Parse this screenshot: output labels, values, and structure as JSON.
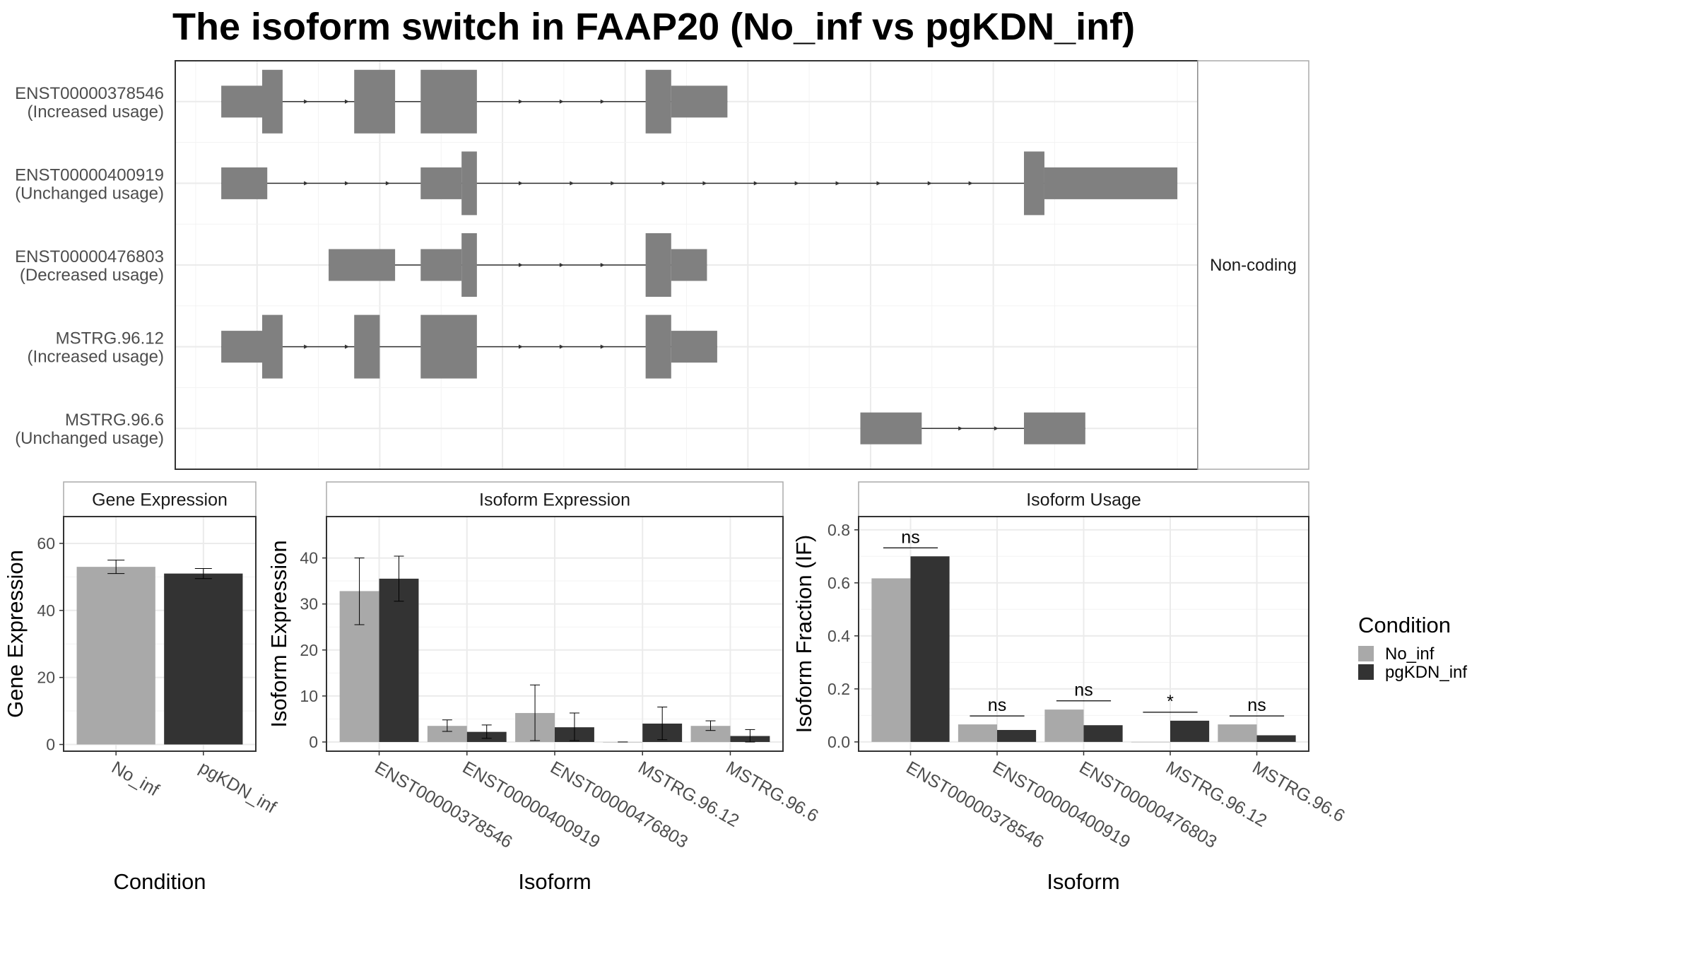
{
  "title": "The isoform switch in FAAP20 (No_inf vs pgKDN_inf)",
  "colors": {
    "No_inf": "#a9a9a9",
    "pgKDN_inf": "#333333",
    "exon": "#808080",
    "grid": "#ebebeb",
    "panel_border": "#333333",
    "strip_border": "#aaaaaa"
  },
  "legend": {
    "title": "Condition",
    "items": [
      "No_inf",
      "pgKDN_inf"
    ]
  },
  "chart_data": [
    {
      "type": "gene_structure",
      "strip_label": "Non-coding",
      "xlim": [
        0,
        100
      ],
      "transcripts": [
        {
          "name": "ENST00000378546",
          "usage": "(Increased usage)",
          "exons": [
            [
              4.5,
              8.5,
              "t"
            ],
            [
              8.5,
              10.5,
              "c"
            ],
            [
              17.5,
              21.5,
              "c"
            ],
            [
              24,
              29.5,
              "c"
            ],
            [
              46,
              48.5,
              "c"
            ],
            [
              48.5,
              54,
              "t"
            ]
          ],
          "arrows": [
            13,
            17,
            34,
            38,
            42
          ]
        },
        {
          "name": "ENST00000400919",
          "usage": "(Unchanged usage)",
          "exons": [
            [
              4.5,
              9,
              "t"
            ],
            [
              24,
              28,
              "t"
            ],
            [
              28,
              29.5,
              "c"
            ],
            [
              83,
              85,
              "c"
            ],
            [
              85,
              98,
              "t"
            ]
          ],
          "arrows": [
            13,
            17,
            21,
            34,
            39,
            43,
            48,
            52,
            57,
            61,
            65,
            69,
            74,
            78
          ]
        },
        {
          "name": "ENST00000476803",
          "usage": "(Decreased usage)",
          "exons": [
            [
              15,
              21.5,
              "t"
            ],
            [
              24,
              28,
              "t"
            ],
            [
              28,
              29.5,
              "c"
            ],
            [
              46,
              48.5,
              "c"
            ],
            [
              48.5,
              52,
              "t"
            ]
          ],
          "arrows": [
            34,
            38,
            42
          ]
        },
        {
          "name": "MSTRG.96.12",
          "usage": "(Increased usage)",
          "exons": [
            [
              4.5,
              8.5,
              "t"
            ],
            [
              8.5,
              10.5,
              "c"
            ],
            [
              17.5,
              20,
              "c"
            ],
            [
              24,
              29.5,
              "c"
            ],
            [
              46,
              48.5,
              "c"
            ],
            [
              48.5,
              53,
              "t"
            ]
          ],
          "arrows": [
            13,
            17,
            34,
            38,
            42
          ]
        },
        {
          "name": "MSTRG.96.6",
          "usage": "(Unchanged usage)",
          "exons": [
            [
              67,
              73,
              "t"
            ],
            [
              83,
              89,
              "t"
            ]
          ],
          "arrows": [
            77,
            80.5
          ]
        }
      ]
    },
    {
      "type": "bar",
      "strip": "Gene Expression",
      "xlabel": "Condition",
      "ylabel": "Gene Expression",
      "ylim": [
        -2,
        68
      ],
      "yticks": [
        0,
        20,
        40,
        60
      ],
      "categories": [
        "No_inf",
        "pgKDN_inf"
      ],
      "values": [
        53,
        51
      ],
      "errors": [
        [
          51,
          55
        ],
        [
          49.5,
          52.5
        ]
      ]
    },
    {
      "type": "bar",
      "strip": "Isoform Expression",
      "xlabel": "Isoform",
      "ylabel": "Isoform Expression",
      "ylim": [
        -2,
        49
      ],
      "yticks": [
        0,
        10,
        20,
        30,
        40
      ],
      "categories": [
        "ENST00000378546",
        "ENST00000400919",
        "ENST00000476803",
        "MSTRG.96.12",
        "MSTRG.96.6"
      ],
      "series": [
        {
          "name": "No_inf",
          "values": [
            32.8,
            3.5,
            6.3,
            0.0,
            3.5
          ],
          "errors": [
            [
              25.5,
              40.0
            ],
            [
              2.3,
              4.8
            ],
            [
              0.3,
              12.4
            ],
            [
              0.0,
              0.0
            ],
            [
              2.5,
              4.6
            ]
          ]
        },
        {
          "name": "pgKDN_inf",
          "values": [
            35.5,
            2.2,
            3.2,
            4.0,
            1.3
          ],
          "errors": [
            [
              30.6,
              40.4
            ],
            [
              0.8,
              3.7
            ],
            [
              0.3,
              6.3
            ],
            [
              0.5,
              7.6
            ],
            [
              0.0,
              2.7
            ]
          ]
        }
      ]
    },
    {
      "type": "bar",
      "strip": "Isoform Usage",
      "xlabel": "Isoform",
      "ylabel": "Isoform Fraction (IF)",
      "ylim": [
        -0.035,
        0.85
      ],
      "yticks": [
        0.0,
        0.2,
        0.4,
        0.6,
        0.8
      ],
      "ytick_labels": [
        "0.0",
        "0.2",
        "0.4",
        "0.6",
        "0.8"
      ],
      "categories": [
        "ENST00000378546",
        "ENST00000400919",
        "ENST00000476803",
        "MSTRG.96.12",
        "MSTRG.96.6"
      ],
      "series": [
        {
          "name": "No_inf",
          "values": [
            0.617,
            0.066,
            0.122,
            0.0,
            0.066
          ]
        },
        {
          "name": "pgKDN_inf",
          "values": [
            0.7,
            0.045,
            0.063,
            0.08,
            0.025
          ]
        }
      ],
      "significance": [
        {
          "label": "ns",
          "y": 0.732
        },
        {
          "label": "ns",
          "y": 0.098
        },
        {
          "label": "ns",
          "y": 0.155
        },
        {
          "label": "*",
          "y": 0.112
        },
        {
          "label": "ns",
          "y": 0.098
        }
      ]
    }
  ]
}
